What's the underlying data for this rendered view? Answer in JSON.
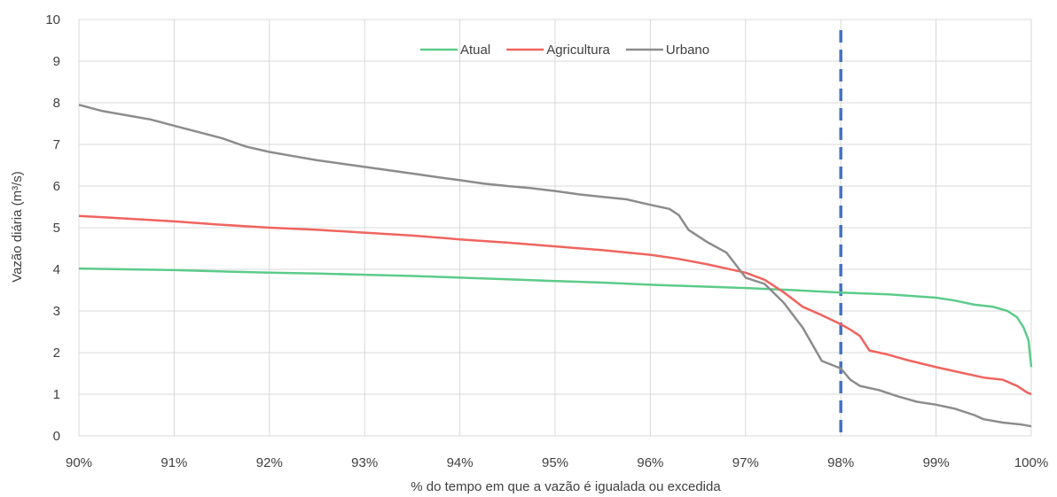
{
  "chart_data": {
    "type": "line",
    "title": "",
    "xlabel": "% do tempo em que a vazão é igualada ou excedida",
    "ylabel": "Vazão diária (m³/s)",
    "xlim": [
      90,
      100
    ],
    "ylim": [
      0,
      10
    ],
    "x_ticks": [
      90,
      91,
      92,
      93,
      94,
      95,
      96,
      97,
      98,
      99,
      100
    ],
    "x_tick_labels": [
      "90%",
      "91%",
      "92%",
      "93%",
      "94%",
      "95%",
      "96%",
      "97%",
      "98%",
      "99%",
      "100%"
    ],
    "y_ticks": [
      0,
      1,
      2,
      3,
      4,
      5,
      6,
      7,
      8,
      9,
      10
    ],
    "y_tick_labels": [
      "0",
      "1",
      "2",
      "3",
      "4",
      "5",
      "6",
      "7",
      "8",
      "9",
      "10"
    ],
    "grid": true,
    "legend_position": "top-center",
    "reference_line": {
      "x": 98,
      "style": "dashed",
      "color": "#4472C4"
    },
    "series": [
      {
        "name": "Atual",
        "color": "#5CCB8A",
        "x": [
          90,
          90.5,
          91,
          91.5,
          92,
          92.5,
          93,
          93.5,
          94,
          94.5,
          95,
          95.5,
          96,
          96.5,
          97,
          97.5,
          98,
          98.5,
          99,
          99.2,
          99.4,
          99.6,
          99.75,
          99.85,
          99.92,
          99.97,
          100
        ],
        "values": [
          4.02,
          4.0,
          3.98,
          3.95,
          3.92,
          3.9,
          3.87,
          3.84,
          3.8,
          3.76,
          3.72,
          3.68,
          3.63,
          3.59,
          3.55,
          3.5,
          3.44,
          3.4,
          3.32,
          3.25,
          3.15,
          3.1,
          3.0,
          2.85,
          2.6,
          2.3,
          1.65
        ]
      },
      {
        "name": "Agricultura",
        "color": "#F0645F",
        "x": [
          90,
          90.5,
          91,
          91.5,
          92,
          92.5,
          93,
          93.5,
          94,
          94.5,
          95,
          95.5,
          96,
          96.3,
          96.6,
          97,
          97.2,
          97.4,
          97.6,
          97.8,
          98,
          98.1,
          98.2,
          98.3,
          98.5,
          98.7,
          99,
          99.3,
          99.5,
          99.7,
          99.85,
          99.95,
          100
        ],
        "values": [
          5.28,
          5.22,
          5.15,
          5.07,
          5.0,
          4.95,
          4.88,
          4.81,
          4.72,
          4.64,
          4.55,
          4.46,
          4.35,
          4.25,
          4.12,
          3.92,
          3.75,
          3.45,
          3.1,
          2.9,
          2.68,
          2.55,
          2.4,
          2.05,
          1.95,
          1.82,
          1.65,
          1.5,
          1.4,
          1.35,
          1.2,
          1.05,
          1.0
        ]
      },
      {
        "name": "Urbano",
        "color": "#8C8C8C",
        "x": [
          90,
          90.25,
          90.5,
          90.75,
          91,
          91.25,
          91.5,
          91.75,
          92,
          92.25,
          92.5,
          92.75,
          93,
          93.25,
          93.5,
          93.75,
          94,
          94.25,
          94.5,
          94.75,
          95,
          95.25,
          95.5,
          95.75,
          96,
          96.2,
          96.3,
          96.4,
          96.5,
          96.6,
          96.8,
          96.9,
          97.0,
          97.2,
          97.4,
          97.5,
          97.6,
          97.7,
          97.8,
          98.0,
          98.1,
          98.2,
          98.4,
          98.6,
          98.8,
          99.0,
          99.2,
          99.4,
          99.5,
          99.7,
          99.9,
          100
        ],
        "values": [
          7.95,
          7.8,
          7.7,
          7.6,
          7.45,
          7.3,
          7.15,
          6.95,
          6.82,
          6.72,
          6.62,
          6.54,
          6.46,
          6.38,
          6.3,
          6.22,
          6.14,
          6.06,
          6.0,
          5.95,
          5.88,
          5.8,
          5.74,
          5.68,
          5.55,
          5.45,
          5.3,
          4.95,
          4.8,
          4.65,
          4.4,
          4.1,
          3.8,
          3.65,
          3.2,
          2.9,
          2.6,
          2.2,
          1.8,
          1.62,
          1.35,
          1.2,
          1.1,
          0.95,
          0.82,
          0.75,
          0.65,
          0.5,
          0.4,
          0.32,
          0.27,
          0.23
        ]
      }
    ]
  }
}
